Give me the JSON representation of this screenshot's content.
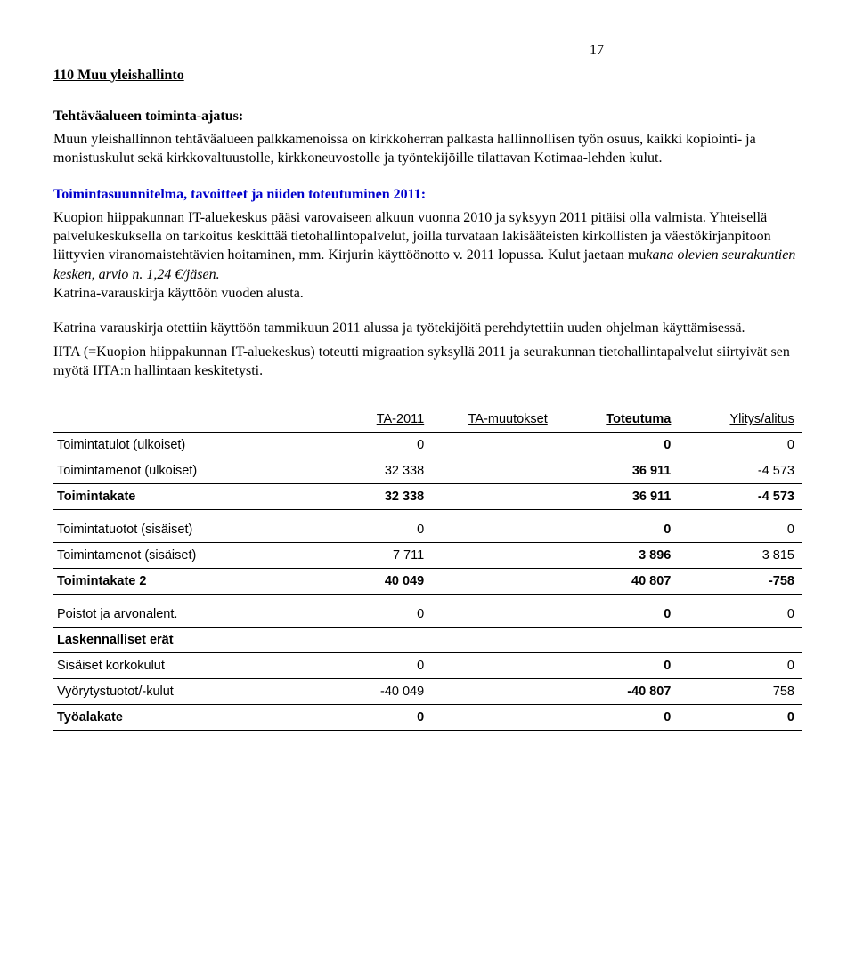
{
  "page_number": "17",
  "title": "110  Muu yleishallinto",
  "section1_heading": "Tehtäväalueen toiminta-ajatus:",
  "section1_body": "Muun yleishallinnon tehtäväalueen palkkamenoissa on kirkkoherran palkasta hallinnollisen työn osuus, kaikki kopiointi- ja monistuskulut sekä kirkkovaltuustolle, kirkkoneuvostolle ja työntekijöille tilattavan Kotimaa-lehden kulut.",
  "section2_heading": "Toimintasuunnitelma, tavoitteet ja niiden toteutuminen 2011:",
  "section2_body": "Kuopion hiippakunnan IT-aluekeskus pääsi varovaiseen alkuun vuonna 2010 ja syksyyn 2011 pitäisi olla valmista. Yhteisellä palvelukeskuksella on tarkoitus keskittää tietohallintopalvelut, joilla turvataan lakisääteisten kirkollisten ja väestökirjanpitoon liittyvien viranomaistehtävien hoitaminen, mm. Kirjurin käyttöönotto v. 2011 lopussa. Kulut jaetaan mu",
  "section2_body_italic": "kana olevien seurakuntien kesken, arvio n. 1,24 €/jäsen.",
  "section2_tail": "Katrina-varauskirja käyttöön vuoden alusta.",
  "section3_p1": "Katrina varauskirja otettiin käyttöön tammikuun 2011 alussa ja työtekijöitä perehdytettiin uuden ohjelman käyttämisessä.",
  "section3_p2": "IITA (=Kuopion hiippakunnan IT-aluekeskus) toteutti migraation syksyllä 2011 ja seurakunnan tietohallintapalvelut siirtyivät sen myötä IITA:n hallintaan keskitetysti.",
  "table": {
    "headers": [
      "",
      "TA-2011",
      "TA-muutokset",
      "Toteutuma",
      "Ylitys/alitus"
    ],
    "rows": [
      {
        "label": "Toimintatulot (ulkoiset)",
        "c1": "0",
        "c2": "",
        "c3": "0",
        "c4": "0",
        "bold": false,
        "border": true,
        "gap": false
      },
      {
        "label": "Toimintamenot (ulkoiset)",
        "c1": "32 338",
        "c2": "",
        "c3": "36 911",
        "c4": "-4 573",
        "bold": false,
        "border": true,
        "gap": false
      },
      {
        "label": "Toimintakate",
        "c1": "32 338",
        "c2": "",
        "c3": "36 911",
        "c4": "-4 573",
        "bold": true,
        "border": true,
        "gap": false
      },
      {
        "label": "Toimintatuotot (sisäiset)",
        "c1": "0",
        "c2": "",
        "c3": "0",
        "c4": "0",
        "bold": false,
        "border": true,
        "gap": true
      },
      {
        "label": " Toimintamenot (sisäiset)",
        "c1": "7 711",
        "c2": "",
        "c3": "3 896",
        "c4": "3 815",
        "bold": false,
        "border": true,
        "gap": false
      },
      {
        "label": "Toimintakate 2",
        "c1": "40 049",
        "c2": "",
        "c3": "40 807",
        "c4": "-758",
        "bold": true,
        "border": true,
        "gap": false
      },
      {
        "label": "Poistot ja arvonalent.",
        "c1": "0",
        "c2": "",
        "c3": "0",
        "c4": "0",
        "bold": false,
        "border": true,
        "gap": true
      },
      {
        "label": "Laskennalliset erät",
        "c1": "",
        "c2": "",
        "c3": "",
        "c4": "",
        "bold": true,
        "border": true,
        "gap": false
      },
      {
        "label": "Sisäiset korkokulut",
        "c1": "0",
        "c2": "",
        "c3": "0",
        "c4": "0",
        "bold": false,
        "border": true,
        "gap": false
      },
      {
        "label": "Vyörytystuotot/-kulut",
        "c1": "-40 049",
        "c2": "",
        "c3": "-40 807",
        "c4": "758",
        "bold": false,
        "border": true,
        "gap": false
      },
      {
        "label": "Työalakate",
        "c1": "0",
        "c2": "",
        "c3": "0",
        "c4": "0",
        "bold": true,
        "border": true,
        "gap": false
      }
    ]
  }
}
